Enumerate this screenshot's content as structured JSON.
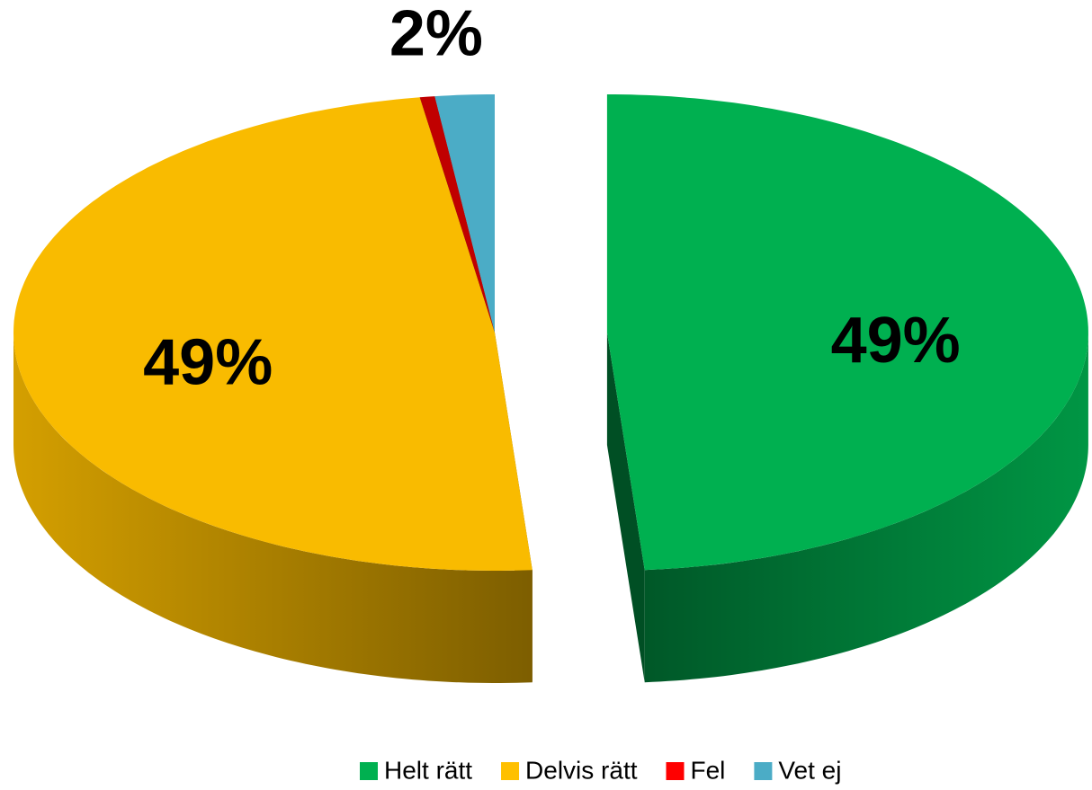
{
  "chart_data": {
    "type": "pie3d",
    "categories": [
      "Helt rätt",
      "Delvis rätt",
      "Fel",
      "Vet ej"
    ],
    "values": [
      49,
      49,
      0.5,
      2
    ],
    "value_labels": [
      "49%",
      "49%",
      null,
      "2%"
    ],
    "colors": [
      "#00b050",
      "#f9bb00",
      "#c00000",
      "#4bacc6"
    ],
    "legend_colors": [
      "#00b050",
      "#ffc000",
      "#ff0000",
      "#4bacc6"
    ],
    "explode": [
      true,
      false,
      false,
      false
    ],
    "legend": "bottom"
  }
}
